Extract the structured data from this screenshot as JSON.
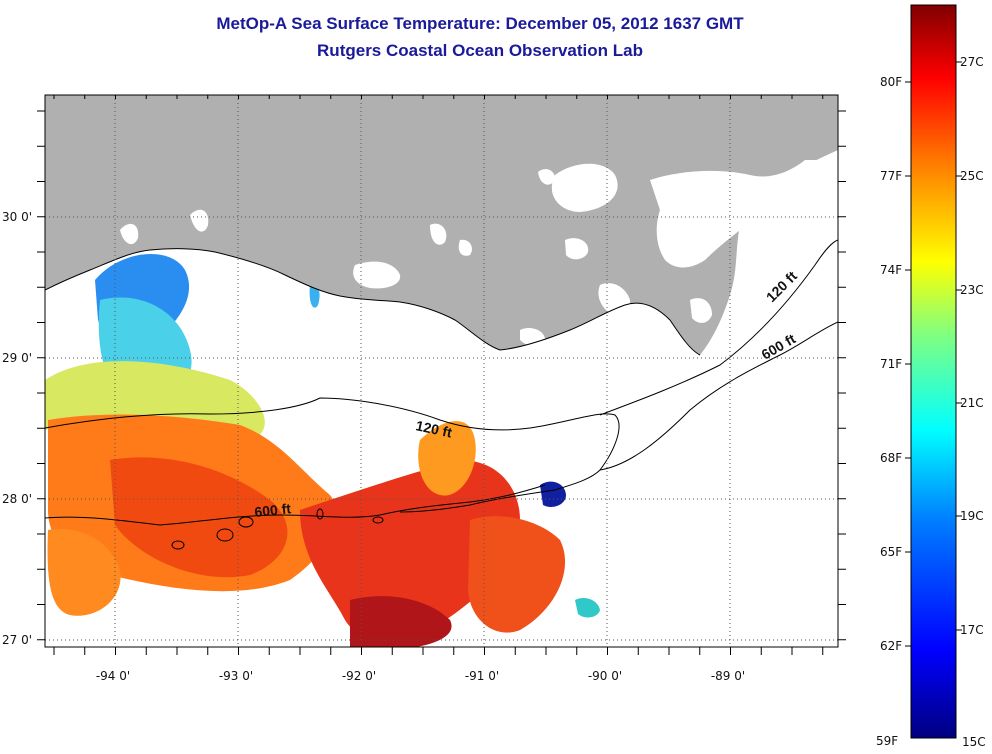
{
  "title": {
    "line1": "MetOp-A Sea Surface Temperature:  December 05, 2012 1637 GMT",
    "line2": "Rutgers Coastal Ocean Observation Lab"
  },
  "map": {
    "lon_range": [
      -94.5,
      -88.0
    ],
    "lat_range": [
      26.93,
      30.85
    ],
    "lon_ticks": [
      "-94 0'",
      "-93 0'",
      "-92 0'",
      "-91 0'",
      "-90 0'",
      "-89 0'"
    ],
    "lat_ticks": [
      "30 0'",
      "29 0'",
      "28 0'",
      "27 0'"
    ],
    "grid": "dotted",
    "land_color": "#b0b0b0",
    "contour_labels": [
      "120 ft",
      "600 ft",
      "120 ft",
      "600 ft"
    ]
  },
  "colorbar": {
    "fahrenheit_labels": [
      "80F",
      "77F",
      "74F",
      "71F",
      "68F",
      "65F",
      "62F",
      "59F"
    ],
    "celsius_labels": [
      "27C",
      "25C",
      "23C",
      "21C",
      "19C",
      "17C",
      "15C"
    ],
    "colors": [
      "#800000",
      "#ff0000",
      "#ff8000",
      "#ffff00",
      "#80ff80",
      "#00ffff",
      "#0080ff",
      "#0000ff",
      "#000080"
    ]
  }
}
